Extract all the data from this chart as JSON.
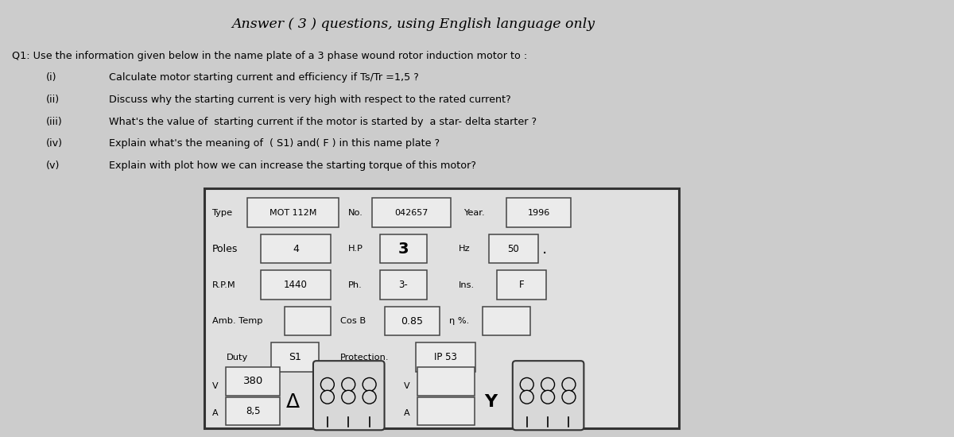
{
  "bg_color": "#cccccc",
  "title_line1": "Answer ( 3 ) questions, using English language only",
  "q1_line": "Q1: Use the information given below in the name plate of a 3 phase wound rotor induction motor to :",
  "items": [
    [
      "(i)",
      "Calculate motor starting current and efficiency if Ts/Tr =1,5 ?"
    ],
    [
      "(ii)",
      "Discuss why the starting current is very high with respect to the rated current?"
    ],
    [
      "(iii)",
      "What's the value of  starting current if the motor is started by  a star- delta starter ?"
    ],
    [
      "(iv)",
      "Explain what's the meaning of  ( S1) and( F ) in this name plate ?"
    ],
    [
      "(v)",
      "Explain with plot how we can increase the starting torque of this motor?"
    ]
  ],
  "nameplate": {
    "type_label": "Type",
    "type_val": "MOT 112M",
    "no_label": "No.",
    "no_val": "042657",
    "year_label": "Year.",
    "year_val": "1996",
    "poles_label": "Poles",
    "poles_val": "4",
    "hp_label": "H.P",
    "hp_val": "3",
    "hz_label": "Hz",
    "hz_val": "50",
    "rpm_label": "R.P.M",
    "rpm_val": "1440",
    "ph_label": "Ph.",
    "ph_val": "3-",
    "ins_label": "Ins.",
    "ins_val": "F",
    "amb_label": "Amb. Temp",
    "cosb_label": "Cos B",
    "cosb_val": "0.85",
    "n_label": "η %.",
    "duty_label": "Duty",
    "duty_val": "S1",
    "protection_label": "Protection.",
    "protection_val": "IP 53",
    "v_delta_val": "380",
    "a_delta_val": "8,5"
  }
}
